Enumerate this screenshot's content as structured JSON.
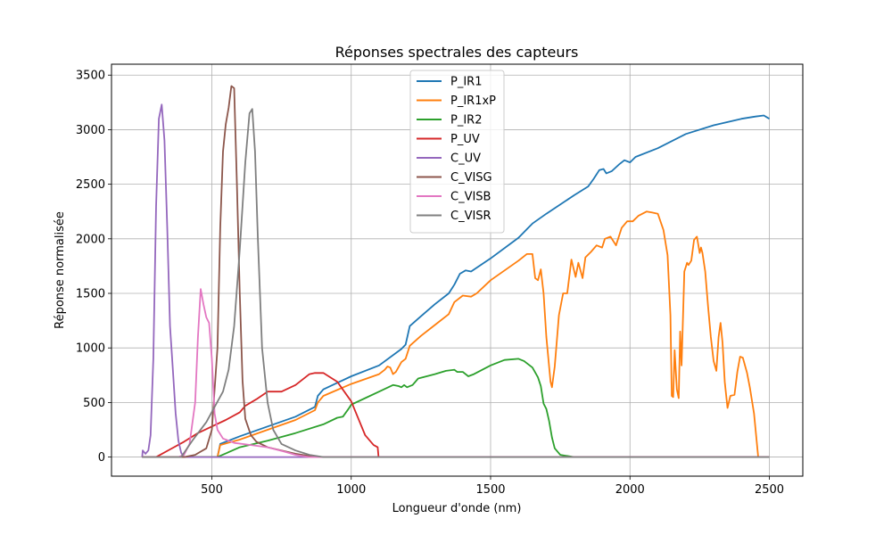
{
  "chart_data": {
    "type": "line",
    "title": "Réponses spectrales des capteurs",
    "xlabel": "Longueur d'onde (nm)",
    "ylabel": "Réponse normalisée",
    "xlim": [
      140,
      2620
    ],
    "ylim": [
      -175,
      3600
    ],
    "xticks": [
      500,
      1000,
      1500,
      2000,
      2500
    ],
    "yticks": [
      0,
      500,
      1000,
      1500,
      2000,
      2500,
      3000,
      3500
    ],
    "grid": true,
    "legend_position": "top-center",
    "series": [
      {
        "name": "P_IR1",
        "color": "#1f77b4",
        "points": [
          [
            250,
            0
          ],
          [
            520,
            0
          ],
          [
            530,
            120
          ],
          [
            600,
            190
          ],
          [
            700,
            280
          ],
          [
            800,
            370
          ],
          [
            870,
            460
          ],
          [
            880,
            560
          ],
          [
            900,
            620
          ],
          [
            1000,
            740
          ],
          [
            1100,
            840
          ],
          [
            1180,
            990
          ],
          [
            1195,
            1030
          ],
          [
            1210,
            1200
          ],
          [
            1250,
            1290
          ],
          [
            1300,
            1400
          ],
          [
            1350,
            1500
          ],
          [
            1370,
            1580
          ],
          [
            1390,
            1680
          ],
          [
            1410,
            1710
          ],
          [
            1430,
            1700
          ],
          [
            1500,
            1820
          ],
          [
            1600,
            2010
          ],
          [
            1650,
            2140
          ],
          [
            1700,
            2230
          ],
          [
            1800,
            2400
          ],
          [
            1850,
            2480
          ],
          [
            1870,
            2550
          ],
          [
            1890,
            2630
          ],
          [
            1905,
            2640
          ],
          [
            1915,
            2600
          ],
          [
            1935,
            2620
          ],
          [
            1960,
            2680
          ],
          [
            1980,
            2720
          ],
          [
            2000,
            2700
          ],
          [
            2020,
            2750
          ],
          [
            2100,
            2830
          ],
          [
            2200,
            2960
          ],
          [
            2300,
            3040
          ],
          [
            2400,
            3100
          ],
          [
            2450,
            3120
          ],
          [
            2480,
            3130
          ],
          [
            2500,
            3100
          ]
        ]
      },
      {
        "name": "P_IR1xP",
        "color": "#ff7f0e",
        "points": [
          [
            250,
            0
          ],
          [
            520,
            0
          ],
          [
            530,
            110
          ],
          [
            600,
            160
          ],
          [
            700,
            250
          ],
          [
            800,
            340
          ],
          [
            870,
            430
          ],
          [
            880,
            500
          ],
          [
            900,
            560
          ],
          [
            1000,
            670
          ],
          [
            1100,
            760
          ],
          [
            1120,
            800
          ],
          [
            1130,
            830
          ],
          [
            1140,
            820
          ],
          [
            1150,
            760
          ],
          [
            1160,
            780
          ],
          [
            1180,
            870
          ],
          [
            1195,
            900
          ],
          [
            1210,
            1020
          ],
          [
            1250,
            1110
          ],
          [
            1300,
            1210
          ],
          [
            1350,
            1310
          ],
          [
            1370,
            1420
          ],
          [
            1400,
            1480
          ],
          [
            1430,
            1470
          ],
          [
            1450,
            1500
          ],
          [
            1500,
            1620
          ],
          [
            1600,
            1800
          ],
          [
            1630,
            1860
          ],
          [
            1650,
            1860
          ],
          [
            1660,
            1640
          ],
          [
            1670,
            1620
          ],
          [
            1680,
            1720
          ],
          [
            1690,
            1500
          ],
          [
            1700,
            1100
          ],
          [
            1715,
            690
          ],
          [
            1720,
            640
          ],
          [
            1730,
            830
          ],
          [
            1745,
            1300
          ],
          [
            1760,
            1500
          ],
          [
            1775,
            1500
          ],
          [
            1790,
            1810
          ],
          [
            1805,
            1650
          ],
          [
            1815,
            1780
          ],
          [
            1830,
            1640
          ],
          [
            1840,
            1830
          ],
          [
            1860,
            1880
          ],
          [
            1880,
            1940
          ],
          [
            1900,
            1920
          ],
          [
            1910,
            2000
          ],
          [
            1930,
            2020
          ],
          [
            1950,
            1940
          ],
          [
            1970,
            2100
          ],
          [
            1990,
            2160
          ],
          [
            2010,
            2160
          ],
          [
            2030,
            2210
          ],
          [
            2060,
            2250
          ],
          [
            2080,
            2240
          ],
          [
            2100,
            2230
          ],
          [
            2120,
            2080
          ],
          [
            2135,
            1850
          ],
          [
            2145,
            1300
          ],
          [
            2150,
            560
          ],
          [
            2155,
            550
          ],
          [
            2160,
            980
          ],
          [
            2168,
            620
          ],
          [
            2175,
            540
          ],
          [
            2180,
            1150
          ],
          [
            2185,
            840
          ],
          [
            2195,
            1700
          ],
          [
            2205,
            1780
          ],
          [
            2210,
            1760
          ],
          [
            2220,
            1800
          ],
          [
            2230,
            1990
          ],
          [
            2240,
            2020
          ],
          [
            2250,
            1870
          ],
          [
            2255,
            1920
          ],
          [
            2260,
            1870
          ],
          [
            2270,
            1700
          ],
          [
            2280,
            1380
          ],
          [
            2290,
            1100
          ],
          [
            2300,
            880
          ],
          [
            2310,
            790
          ],
          [
            2318,
            1100
          ],
          [
            2325,
            1230
          ],
          [
            2332,
            1050
          ],
          [
            2340,
            690
          ],
          [
            2350,
            450
          ],
          [
            2360,
            560
          ],
          [
            2375,
            570
          ],
          [
            2385,
            780
          ],
          [
            2395,
            920
          ],
          [
            2405,
            910
          ],
          [
            2420,
            770
          ],
          [
            2430,
            640
          ],
          [
            2445,
            400
          ],
          [
            2460,
            0
          ],
          [
            2500,
            0
          ]
        ]
      },
      {
        "name": "P_IR2",
        "color": "#2ca02c",
        "points": [
          [
            250,
            0
          ],
          [
            450,
            0
          ],
          [
            520,
            0
          ],
          [
            600,
            90
          ],
          [
            700,
            150
          ],
          [
            800,
            220
          ],
          [
            900,
            300
          ],
          [
            950,
            360
          ],
          [
            970,
            370
          ],
          [
            990,
            440
          ],
          [
            1000,
            480
          ],
          [
            1050,
            540
          ],
          [
            1100,
            600
          ],
          [
            1150,
            660
          ],
          [
            1170,
            650
          ],
          [
            1180,
            640
          ],
          [
            1190,
            660
          ],
          [
            1200,
            640
          ],
          [
            1220,
            660
          ],
          [
            1240,
            720
          ],
          [
            1300,
            760
          ],
          [
            1340,
            790
          ],
          [
            1370,
            800
          ],
          [
            1380,
            780
          ],
          [
            1400,
            780
          ],
          [
            1420,
            740
          ],
          [
            1440,
            760
          ],
          [
            1500,
            840
          ],
          [
            1550,
            890
          ],
          [
            1600,
            900
          ],
          [
            1620,
            880
          ],
          [
            1650,
            820
          ],
          [
            1670,
            730
          ],
          [
            1680,
            650
          ],
          [
            1690,
            490
          ],
          [
            1700,
            440
          ],
          [
            1710,
            330
          ],
          [
            1720,
            180
          ],
          [
            1730,
            80
          ],
          [
            1750,
            20
          ],
          [
            1800,
            0
          ],
          [
            2500,
            0
          ]
        ]
      },
      {
        "name": "P_UV",
        "color": "#d62728",
        "points": [
          [
            250,
            0
          ],
          [
            300,
            0
          ],
          [
            350,
            70
          ],
          [
            400,
            140
          ],
          [
            450,
            220
          ],
          [
            500,
            280
          ],
          [
            550,
            340
          ],
          [
            600,
            410
          ],
          [
            620,
            470
          ],
          [
            660,
            530
          ],
          [
            700,
            600
          ],
          [
            750,
            600
          ],
          [
            800,
            660
          ],
          [
            850,
            760
          ],
          [
            870,
            770
          ],
          [
            900,
            770
          ],
          [
            950,
            690
          ],
          [
            1000,
            510
          ],
          [
            1050,
            200
          ],
          [
            1080,
            110
          ],
          [
            1095,
            90
          ],
          [
            1098,
            0
          ]
        ]
      },
      {
        "name": "C_UV",
        "color": "#9467bd",
        "points": [
          [
            250,
            0
          ],
          [
            252,
            60
          ],
          [
            262,
            30
          ],
          [
            272,
            60
          ],
          [
            280,
            200
          ],
          [
            290,
            900
          ],
          [
            300,
            2300
          ],
          [
            310,
            3100
          ],
          [
            320,
            3230
          ],
          [
            330,
            2900
          ],
          [
            340,
            2100
          ],
          [
            350,
            1200
          ],
          [
            360,
            800
          ],
          [
            370,
            400
          ],
          [
            380,
            150
          ],
          [
            390,
            40
          ],
          [
            400,
            0
          ],
          [
            2500,
            0
          ]
        ]
      },
      {
        "name": "C_VISG",
        "color": "#8c564b",
        "points": [
          [
            250,
            0
          ],
          [
            400,
            0
          ],
          [
            440,
            20
          ],
          [
            480,
            80
          ],
          [
            500,
            250
          ],
          [
            520,
            1000
          ],
          [
            530,
            2100
          ],
          [
            540,
            2800
          ],
          [
            550,
            3050
          ],
          [
            560,
            3200
          ],
          [
            570,
            3400
          ],
          [
            580,
            3380
          ],
          [
            590,
            2500
          ],
          [
            600,
            1500
          ],
          [
            610,
            700
          ],
          [
            620,
            350
          ],
          [
            640,
            200
          ],
          [
            660,
            140
          ],
          [
            700,
            90
          ],
          [
            750,
            60
          ],
          [
            800,
            30
          ],
          [
            850,
            10
          ],
          [
            900,
            0
          ],
          [
            2500,
            0
          ]
        ]
      },
      {
        "name": "C_VISB",
        "color": "#e377c2",
        "points": [
          [
            250,
            0
          ],
          [
            380,
            0
          ],
          [
            400,
            20
          ],
          [
            420,
            120
          ],
          [
            440,
            500
          ],
          [
            450,
            1100
          ],
          [
            460,
            1540
          ],
          [
            470,
            1400
          ],
          [
            480,
            1280
          ],
          [
            490,
            1230
          ],
          [
            500,
            900
          ],
          [
            510,
            400
          ],
          [
            520,
            250
          ],
          [
            540,
            170
          ],
          [
            580,
            130
          ],
          [
            640,
            110
          ],
          [
            700,
            90
          ],
          [
            760,
            50
          ],
          [
            800,
            20
          ],
          [
            850,
            0
          ],
          [
            2500,
            0
          ]
        ]
      },
      {
        "name": "C_VISR",
        "color": "#7f7f7f",
        "points": [
          [
            250,
            0
          ],
          [
            390,
            0
          ],
          [
            430,
            150
          ],
          [
            480,
            320
          ],
          [
            510,
            460
          ],
          [
            540,
            600
          ],
          [
            560,
            800
          ],
          [
            580,
            1200
          ],
          [
            600,
            1900
          ],
          [
            620,
            2700
          ],
          [
            635,
            3150
          ],
          [
            645,
            3190
          ],
          [
            655,
            2800
          ],
          [
            665,
            2000
          ],
          [
            680,
            1000
          ],
          [
            700,
            500
          ],
          [
            720,
            250
          ],
          [
            750,
            120
          ],
          [
            800,
            60
          ],
          [
            850,
            20
          ],
          [
            900,
            0
          ],
          [
            2500,
            0
          ]
        ]
      }
    ]
  }
}
